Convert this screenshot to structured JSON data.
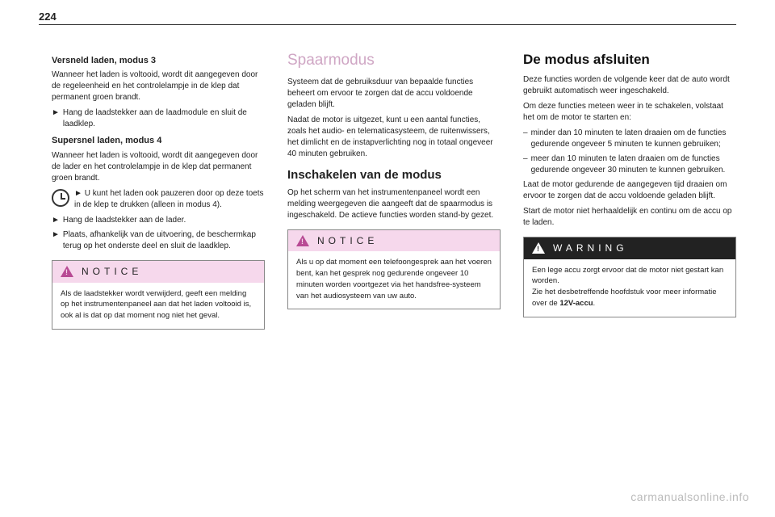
{
  "page_number": "224",
  "watermark": "carmanualsonline.info",
  "col1": {
    "h1": "Versneld laden, modus 3",
    "p1": "Wanneer het laden is voltooid, wordt dit aangegeven door de regeleenheid en het controlelampje in de klep dat permanent groen brandt.",
    "b1": "Hang de laadstekker aan de laadmodule en sluit de laadklep.",
    "h2": "Supersnel laden, modus 4",
    "p2": "Wanneer het laden is voltooid, wordt dit aangegeven door de lader en het controlelampje in de klep dat permanent groen brandt.",
    "b2": "U kunt het laden ook pauzeren door op deze toets in de klep te drukken (alleen in modus 4).",
    "b3": "Hang de laadstekker aan de lader.",
    "b4": "Plaats, afhankelijk van de uitvoering, de beschermkap terug op het onderste deel en sluit de laadklep.",
    "notice_title": "NOTICE",
    "notice_body": "Als de laadstekker wordt verwijderd, geeft een melding op het instrumentenpaneel aan dat het laden voltooid is, ook al is dat op dat moment nog niet het geval."
  },
  "col2": {
    "h1": "Spaarmodus",
    "p1": "Systeem dat de gebruiksduur van bepaalde functies beheert om ervoor te zorgen dat de accu voldoende geladen blijft.",
    "p2": "Nadat de motor is uitgezet, kunt u een aantal functies, zoals het audio- en telematicasysteem, de ruitenwissers, het dimlicht en de instapverlichting nog in totaal ongeveer 40 minuten gebruiken.",
    "h2": "Inschakelen van de modus",
    "p3": "Op het scherm van het instrumentenpaneel wordt een melding weergegeven die aangeeft dat de spaarmodus is ingeschakeld. De actieve functies worden stand-by gezet.",
    "notice_title": "NOTICE",
    "notice_body": "Als u op dat moment een telefoongesprek aan het voeren bent, kan het gesprek nog gedurende ongeveer 10 minuten worden voortgezet via het handsfree-systeem van het audiosysteem van uw auto."
  },
  "col3": {
    "h1": "De modus afsluiten",
    "p1": "Deze functies worden de volgende keer dat de auto wordt gebruikt automatisch weer ingeschakeld.",
    "p2": "Om deze functies meteen weer in te schakelen, volstaat het om de motor te starten en:",
    "li1": "minder dan 10 minuten te laten draaien om de functies gedurende ongeveer 5 minuten te kunnen gebruiken;",
    "li2": "meer dan 10 minuten te laten draaien om de functies gedurende ongeveer 30 minuten te kunnen gebruiken.",
    "p3": "Laat de motor gedurende de aangegeven tijd draaien om ervoor te zorgen dat de accu voldoende geladen blijft.",
    "p4": "Start de motor niet herhaaldelijk en continu om de accu op te laden.",
    "warning_title": "WARNING",
    "warning_b1": "Een lege accu zorgt ervoor dat de motor niet gestart kan worden.",
    "warning_b2a": "Zie het desbetreffende hoofdstuk voor meer informatie over de ",
    "warning_b2b": "12V-accu",
    "warning_b2c": "."
  },
  "glyphs": {
    "arrow": "►",
    "dash": "–"
  }
}
